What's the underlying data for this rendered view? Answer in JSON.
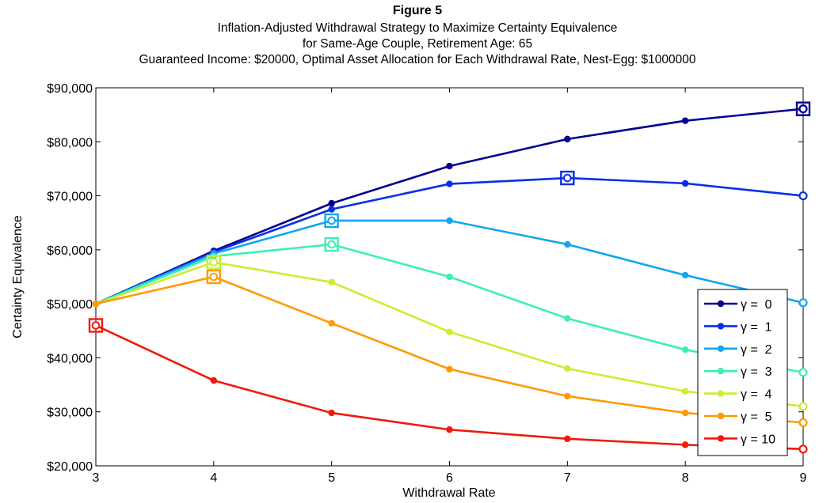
{
  "chart_data": {
    "type": "line",
    "title": "Figure 5",
    "subtitle_lines": [
      "Inflation-Adjusted Withdrawal Strategy to Maximize Certainty Equivalence",
      "for Same-Age Couple, Retirement Age: 65",
      "Guaranteed Income: $20000, Optimal Asset Allocation for Each Withdrawal Rate, Nest-Egg: $1000000"
    ],
    "xlabel": "Withdrawal Rate",
    "ylabel": "Certainty Equivalence",
    "xlim": [
      3,
      9
    ],
    "ylim": [
      20000,
      90000
    ],
    "x": [
      3,
      4,
      5,
      6,
      7,
      8,
      9
    ],
    "x_tick_labels": [
      "3",
      "4",
      "5",
      "6",
      "7",
      "8",
      "9"
    ],
    "y_ticks": [
      20000,
      30000,
      40000,
      50000,
      60000,
      70000,
      80000,
      90000
    ],
    "y_tick_labels": [
      "$20,000",
      "$30,000",
      "$40,000",
      "$50,000",
      "$60,000",
      "$70,000",
      "$80,000",
      "$90,000"
    ],
    "grid": false,
    "legend_position": "bottom-right",
    "series": [
      {
        "name": "γ =  0",
        "color": "#000090",
        "values": [
          50000,
          59800,
          68600,
          75500,
          80500,
          83900,
          86100
        ],
        "max_index": 6
      },
      {
        "name": "γ =  1",
        "color": "#0a2ee6",
        "values": [
          50000,
          59600,
          67500,
          72200,
          73300,
          72300,
          70000
        ],
        "max_index": 4
      },
      {
        "name": "γ =  2",
        "color": "#12a6f0",
        "values": [
          50000,
          59300,
          65400,
          65400,
          61000,
          55300,
          50200
        ],
        "max_index": 2
      },
      {
        "name": "γ =  3",
        "color": "#3ef0b0",
        "values": [
          50000,
          58800,
          61000,
          55000,
          47300,
          41500,
          37300
        ],
        "max_index": 2
      },
      {
        "name": "γ =  4",
        "color": "#c6f030",
        "values": [
          50000,
          57700,
          54000,
          44800,
          38000,
          33800,
          31000
        ],
        "max_index": 1
      },
      {
        "name": "γ =  5",
        "color": "#ff9a00",
        "values": [
          50000,
          55000,
          46400,
          37900,
          32900,
          29800,
          28000
        ],
        "max_index": 1
      },
      {
        "name": "γ = 10",
        "color": "#ef1a0a",
        "values": [
          46000,
          35800,
          29800,
          26700,
          25000,
          23900,
          23100
        ],
        "max_index": 0
      }
    ]
  }
}
